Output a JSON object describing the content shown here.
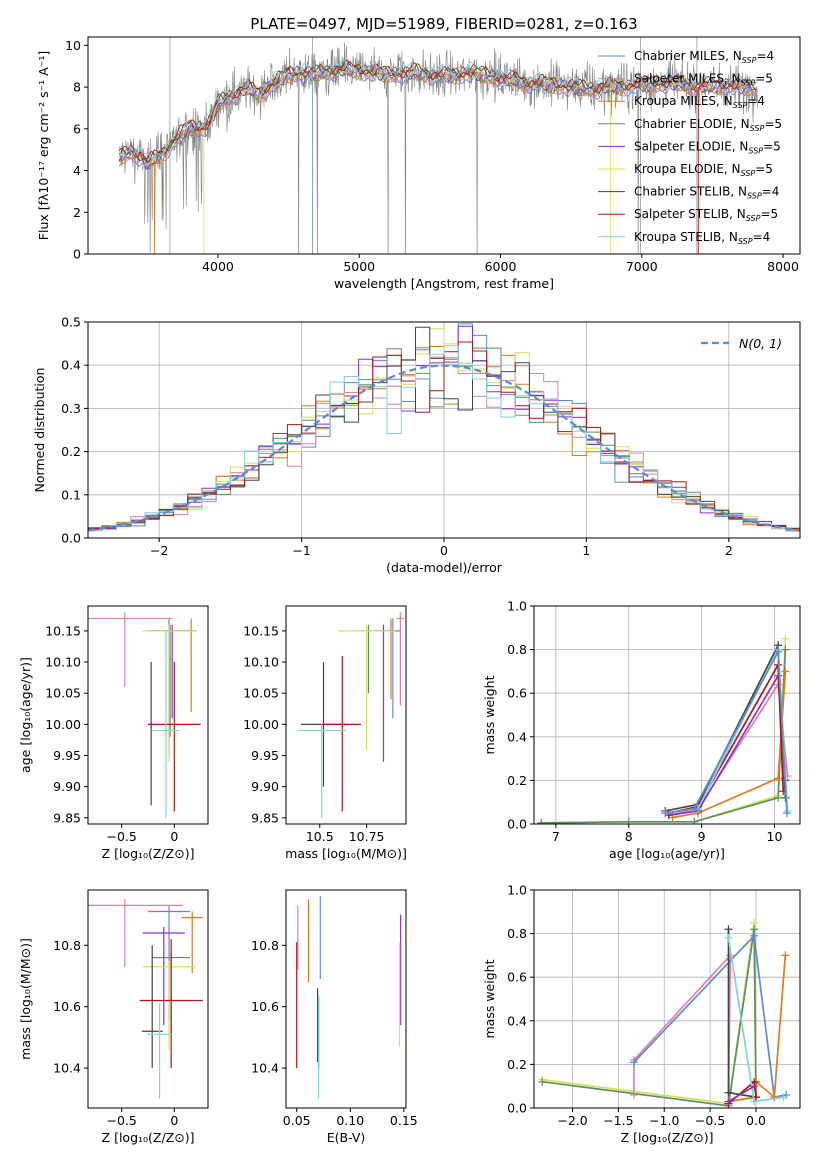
{
  "figure": {
    "title": "PLATE=0497, MJD=51989, FIBERID=0281, z=0.163"
  },
  "palette": {
    "chabrier_miles": "#5b8bd6",
    "salpeter_miles": "#e67fa8",
    "kroupa_miles": "#e07a1f",
    "chabrier_elodie": "#5f8f5f",
    "salpeter_elodie": "#8b2fc9",
    "kroupa_elodie": "#d4e05a",
    "chabrier_stelib": "#444444",
    "salpeter_stelib": "#b01515",
    "kroupa_stelib": "#7fd4d8",
    "data": "#808080",
    "normal": "#5b8bd6"
  },
  "chart_data": [
    {
      "id": "spectrum",
      "type": "line",
      "xlabel": "wavelength [Angstrom, rest frame]",
      "ylabel": "Flux [fλ10⁻¹⁷ erg cm⁻² s⁻¹ A⁻¹]",
      "xlim": [
        3080,
        8120
      ],
      "ylim": [
        0,
        10.4
      ],
      "xticks": [
        4000,
        5000,
        6000,
        7000,
        8000
      ],
      "yticks": [
        0,
        2,
        4,
        6,
        8,
        10
      ],
      "legend_position": "right",
      "continuum": [
        [
          3300,
          4.6
        ],
        [
          3380,
          4.9
        ],
        [
          3450,
          4.7
        ],
        [
          3500,
          4.3
        ],
        [
          3600,
          4.8
        ],
        [
          3700,
          5.5
        ],
        [
          3800,
          6.1
        ],
        [
          3900,
          6.0
        ],
        [
          3950,
          6.4
        ],
        [
          4000,
          7.2
        ],
        [
          4100,
          7.6
        ],
        [
          4200,
          7.9
        ],
        [
          4300,
          7.7
        ],
        [
          4400,
          8.2
        ],
        [
          4500,
          8.6
        ],
        [
          4600,
          8.7
        ],
        [
          4700,
          8.6
        ],
        [
          4800,
          8.8
        ],
        [
          5000,
          8.8
        ],
        [
          5200,
          8.6
        ],
        [
          5400,
          8.7
        ],
        [
          5600,
          8.5
        ],
        [
          5800,
          8.7
        ],
        [
          6000,
          8.4
        ],
        [
          6200,
          8.2
        ],
        [
          6400,
          8.1
        ],
        [
          6600,
          7.9
        ],
        [
          6800,
          8.0
        ],
        [
          7000,
          8.1
        ],
        [
          7200,
          8.2
        ],
        [
          7400,
          8.0
        ],
        [
          7600,
          8.1
        ],
        [
          7820,
          7.9
        ]
      ],
      "series": [
        {
          "name": "Chabrier MILES, N_SSP=4",
          "color_key": "chabrier_miles"
        },
        {
          "name": "Salpeter MILES, N_SSP=5",
          "color_key": "salpeter_miles"
        },
        {
          "name": "Kroupa MILES, N_SSP=4",
          "color_key": "kroupa_miles"
        },
        {
          "name": "Chabrier ELODIE, N_SSP=5",
          "color_key": "chabrier_elodie"
        },
        {
          "name": "Salpeter ELODIE, N_SSP=5",
          "color_key": "salpeter_elodie"
        },
        {
          "name": "Kroupa ELODIE, N_SSP=5",
          "color_key": "kroupa_elodie"
        },
        {
          "name": "Chabrier STELIB, N_SSP=4",
          "color_key": "chabrier_stelib"
        },
        {
          "name": "Salpeter STELIB, N_SSP=5",
          "color_key": "salpeter_stelib"
        },
        {
          "name": "Kroupa STELIB, N_SSP=4",
          "color_key": "kroupa_stelib"
        }
      ]
    },
    {
      "id": "residuals",
      "type": "line",
      "xlabel": "(data-model)/error",
      "ylabel": "Normed distribution",
      "xlim": [
        -2.5,
        2.5
      ],
      "ylim": [
        0,
        0.5
      ],
      "xticks": [
        -2,
        -1,
        0,
        1,
        2
      ],
      "yticks": [
        0.0,
        0.1,
        0.2,
        0.3,
        0.4,
        0.5
      ],
      "grid": true,
      "legend_label": "N(0, 1)",
      "legend_position": "top-right",
      "bin_width": 0.1
    },
    {
      "id": "age_vs_z",
      "type": "scatter",
      "xlabel": "Z [log₁₀(Z/Z⊙)]",
      "ylabel": "age [log₁₀(age/yr)]",
      "xlim": [
        -0.82,
        0.32
      ],
      "ylim": [
        9.84,
        10.19
      ],
      "xticks": [
        -0.5,
        0.0
      ],
      "yticks": [
        9.85,
        9.9,
        9.95,
        10.0,
        10.05,
        10.1,
        10.15
      ],
      "points": [
        {
          "color_key": "chabrier_miles",
          "x": -0.05,
          "xe": 0.15,
          "y": 10.15,
          "ye_lo": 0.2,
          "ye_hi": 0.02
        },
        {
          "color_key": "salpeter_miles",
          "x": -0.47,
          "xe": 0.45,
          "y": 10.17,
          "ye_lo": 0.11,
          "ye_hi": 0.01
        },
        {
          "color_key": "kroupa_miles",
          "x": 0.16,
          "xe": 0.05,
          "y": 10.15,
          "ye_lo": 0.13,
          "ye_hi": 0.02
        },
        {
          "color_key": "chabrier_elodie",
          "x": -0.04,
          "xe": 0.2,
          "y": 10.15,
          "ye_lo": 0.17,
          "ye_hi": 0.01
        },
        {
          "color_key": "salpeter_elodie",
          "x": -0.02,
          "xe": 0.2,
          "y": 10.15,
          "ye_lo": 0.14,
          "ye_hi": 0.01
        },
        {
          "color_key": "kroupa_elodie",
          "x": -0.05,
          "xe": 0.25,
          "y": 10.15,
          "ye_lo": 0.21,
          "ye_hi": 0.01
        },
        {
          "color_key": "chabrier_stelib",
          "x": -0.22,
          "xe": 0.02,
          "y": 10.0,
          "ye_lo": 0.13,
          "ye_hi": 0.1
        },
        {
          "color_key": "salpeter_stelib",
          "x": 0.0,
          "xe": 0.25,
          "y": 10.0,
          "ye_lo": 0.14,
          "ye_hi": 0.1
        },
        {
          "color_key": "kroupa_stelib",
          "x": -0.08,
          "xe": 0.13,
          "y": 9.99,
          "ye_lo": 0.14,
          "ye_hi": 0.16
        }
      ]
    },
    {
      "id": "age_vs_mass",
      "type": "scatter",
      "xlabel": "mass [log₁₀(M/M⊙)]",
      "ylabel": "",
      "xlim": [
        10.32,
        10.96
      ],
      "ylim": [
        9.84,
        10.19
      ],
      "xticks": [
        10.5,
        10.75
      ],
      "yticks": [
        9.85,
        9.9,
        9.95,
        10.0,
        10.05,
        10.1,
        10.15
      ],
      "points": [
        {
          "color_key": "chabrier_miles",
          "x": 10.89,
          "xe": 0.04,
          "y": 10.15,
          "ye_lo": 0.14,
          "ye_hi": 0.02
        },
        {
          "color_key": "salpeter_miles",
          "x": 10.93,
          "xe": 0.02,
          "y": 10.17,
          "ye_lo": 0.14,
          "ye_hi": 0.01
        },
        {
          "color_key": "kroupa_miles",
          "x": 10.88,
          "xe": 0.02,
          "y": 10.15,
          "ye_lo": 0.11,
          "ye_hi": 0.02
        },
        {
          "color_key": "chabrier_elodie",
          "x": 10.76,
          "xe": 0.08,
          "y": 10.15,
          "ye_lo": 0.1,
          "ye_hi": 0.01
        },
        {
          "color_key": "salpeter_elodie",
          "x": 10.84,
          "xe": 0.05,
          "y": 10.15,
          "ye_lo": 0.21,
          "ye_hi": 0.01
        },
        {
          "color_key": "kroupa_elodie",
          "x": 10.75,
          "xe": 0.15,
          "y": 10.15,
          "ye_lo": 0.19,
          "ye_hi": 0.01
        },
        {
          "color_key": "chabrier_stelib",
          "x": 10.52,
          "xe": 0.12,
          "y": 10.0,
          "ye_lo": 0.1,
          "ye_hi": 0.1
        },
        {
          "color_key": "salpeter_stelib",
          "x": 10.62,
          "xe": 0.1,
          "y": 10.0,
          "ye_lo": 0.14,
          "ye_hi": 0.11
        },
        {
          "color_key": "kroupa_stelib",
          "x": 10.51,
          "xe": 0.13,
          "y": 9.99,
          "ye_lo": 0.14,
          "ye_hi": 0.01
        }
      ]
    },
    {
      "id": "mass_vs_z",
      "type": "scatter",
      "xlabel": "Z [log₁₀(Z/Z⊙)]",
      "ylabel": "mass [log₁₀(M/M⊙)]",
      "xlim": [
        -0.82,
        0.32
      ],
      "ylim": [
        10.27,
        10.98
      ],
      "xticks": [
        -0.5,
        0.0
      ],
      "yticks": [
        10.4,
        10.6,
        10.8
      ],
      "points": [
        {
          "color_key": "chabrier_miles",
          "x": -0.05,
          "xe": 0.2,
          "y": 10.91,
          "ye_lo": 0.35,
          "ye_hi": 0.02
        },
        {
          "color_key": "salpeter_miles",
          "x": -0.47,
          "xe": 0.55,
          "y": 10.93,
          "ye_lo": 0.2,
          "ye_hi": 0.02
        },
        {
          "color_key": "kroupa_miles",
          "x": 0.17,
          "xe": 0.1,
          "y": 10.89,
          "ye_lo": 0.18,
          "ye_hi": 0.02
        },
        {
          "color_key": "chabrier_elodie",
          "x": -0.03,
          "xe": 0.18,
          "y": 10.76,
          "ye_lo": 0.25,
          "ye_hi": 0.02
        },
        {
          "color_key": "salpeter_elodie",
          "x": -0.1,
          "xe": 0.2,
          "y": 10.84,
          "ye_lo": 0.3,
          "ye_hi": 0.02
        },
        {
          "color_key": "kroupa_elodie",
          "x": -0.05,
          "xe": 0.25,
          "y": 10.73,
          "ye_lo": 0.27,
          "ye_hi": 0.02
        },
        {
          "color_key": "chabrier_stelib",
          "x": -0.21,
          "xe": 0.1,
          "y": 10.52,
          "ye_lo": 0.12,
          "ye_hi": 0.28
        },
        {
          "color_key": "salpeter_stelib",
          "x": -0.03,
          "xe": 0.3,
          "y": 10.62,
          "ye_lo": 0.22,
          "ye_hi": 0.2
        },
        {
          "color_key": "kroupa_stelib",
          "x": -0.14,
          "xe": 0.12,
          "y": 10.51,
          "ye_lo": 0.21,
          "ye_hi": 0.1
        }
      ]
    },
    {
      "id": "mass_vs_ebv",
      "type": "scatter",
      "xlabel": "E(B-V)",
      "ylabel": "",
      "xlim": [
        0.04,
        0.152
      ],
      "ylim": [
        10.27,
        10.98
      ],
      "xticks": [
        0.05,
        0.1,
        0.15
      ],
      "yticks": [
        10.4,
        10.6,
        10.8
      ],
      "vlines": [
        {
          "color_key": "chabrier_miles",
          "x": 0.072,
          "y_lo": 10.69,
          "y_hi": 10.96
        },
        {
          "color_key": "salpeter_miles",
          "x": 0.051,
          "y_lo": 10.72,
          "y_hi": 10.93
        },
        {
          "color_key": "kroupa_miles",
          "x": 0.061,
          "y_lo": 10.68,
          "y_hi": 10.95
        },
        {
          "color_key": "chabrier_elodie",
          "x": 0.0705,
          "y_lo": 10.4,
          "y_hi": 10.63
        },
        {
          "color_key": "salpeter_elodie",
          "x": 0.147,
          "y_lo": 10.54,
          "y_hi": 10.9
        },
        {
          "color_key": "kroupa_elodie",
          "x": 0.146,
          "y_lo": 10.47,
          "y_hi": 10.81
        },
        {
          "color_key": "chabrier_stelib",
          "x": 0.0695,
          "y_lo": 10.42,
          "y_hi": 10.66
        },
        {
          "color_key": "salpeter_stelib",
          "x": 0.05,
          "y_lo": 10.4,
          "y_hi": 10.81
        },
        {
          "color_key": "kroupa_stelib",
          "x": 0.0705,
          "y_lo": 10.3,
          "y_hi": 10.64
        }
      ]
    },
    {
      "id": "weight_vs_age",
      "type": "line",
      "xlabel": "age [log₁₀(age/yr)]",
      "ylabel": "mass weight",
      "xlim": [
        6.7,
        10.35
      ],
      "ylim": [
        0,
        1.0
      ],
      "xticks": [
        7,
        8,
        9,
        10
      ],
      "yticks": [
        0.0,
        0.2,
        0.4,
        0.6,
        0.8,
        1.0
      ],
      "grid": true,
      "series": [
        {
          "color_key": "kroupa_elodie",
          "x": [
            6.8,
            8.0,
            8.9,
            10.05,
            10.15
          ],
          "y": [
            0.005,
            0.01,
            0.01,
            0.13,
            0.85
          ]
        },
        {
          "color_key": "chabrier_elodie",
          "x": [
            6.8,
            8.0,
            8.9,
            10.05,
            10.15
          ],
          "y": [
            0.005,
            0.01,
            0.01,
            0.12,
            0.8
          ]
        },
        {
          "color_key": "kroupa_miles",
          "x": [
            8.6,
            8.95,
            10.05,
            10.15
          ],
          "y": [
            0.03,
            0.05,
            0.21,
            0.7
          ]
        },
        {
          "color_key": "salpeter_miles",
          "x": [
            8.55,
            8.95,
            10.05,
            10.18
          ],
          "y": [
            0.04,
            0.07,
            0.64,
            0.22
          ]
        },
        {
          "color_key": "salpeter_elodie",
          "x": [
            8.55,
            8.95,
            10.05,
            10.15
          ],
          "y": [
            0.04,
            0.06,
            0.68,
            0.2
          ]
        },
        {
          "color_key": "chabrier_stelib",
          "x": [
            8.5,
            8.95,
            10.05,
            10.15
          ],
          "y": [
            0.06,
            0.09,
            0.82,
            0.12
          ]
        },
        {
          "color_key": "salpeter_stelib",
          "x": [
            8.55,
            8.95,
            10.05,
            10.12
          ],
          "y": [
            0.05,
            0.08,
            0.73,
            0.15
          ]
        },
        {
          "color_key": "kroupa_stelib",
          "x": [
            8.5,
            8.95,
            10.05,
            10.18
          ],
          "y": [
            0.05,
            0.07,
            0.8,
            0.06
          ]
        },
        {
          "color_key": "chabrier_miles",
          "x": [
            8.5,
            8.9,
            10.05,
            10.17
          ],
          "y": [
            0.05,
            0.07,
            0.79,
            0.05
          ]
        }
      ]
    },
    {
      "id": "weight_vs_z",
      "type": "line",
      "xlabel": "Z [log₁₀(Z/Z⊙)]",
      "ylabel": "mass weight",
      "xlim": [
        -2.42,
        0.48
      ],
      "ylim": [
        0,
        1.0
      ],
      "xticks": [
        -2.0,
        -1.5,
        -1.0,
        -0.5,
        0.0
      ],
      "yticks": [
        0.0,
        0.2,
        0.4,
        0.6,
        0.8,
        1.0
      ],
      "grid": true,
      "series": [
        {
          "color_key": "kroupa_elodie",
          "x": [
            -2.33,
            -0.3,
            -0.02,
            0.0
          ],
          "y": [
            0.13,
            0.02,
            0.85,
            0.05
          ]
        },
        {
          "color_key": "chabrier_elodie",
          "x": [
            -2.33,
            -0.3,
            -0.02,
            0.0
          ],
          "y": [
            0.12,
            0.01,
            0.82,
            0.05
          ]
        },
        {
          "color_key": "salpeter_miles",
          "x": [
            -1.33,
            -1.33,
            -0.28,
            -0.3
          ],
          "y": [
            0.06,
            0.22,
            0.7,
            0.02
          ]
        },
        {
          "color_key": "chabrier_miles",
          "x": [
            -1.33,
            -0.02,
            0.2,
            0.33
          ],
          "y": [
            0.21,
            0.79,
            0.05,
            0.06
          ]
        },
        {
          "color_key": "kroupa_miles",
          "x": [
            -0.3,
            0.0,
            0.0,
            0.2,
            0.32
          ],
          "y": [
            0.03,
            0.05,
            0.12,
            0.05,
            0.7
          ]
        },
        {
          "color_key": "chabrier_stelib",
          "x": [
            -0.3,
            -0.3,
            0.0
          ],
          "y": [
            0.82,
            0.07,
            0.05
          ]
        },
        {
          "color_key": "salpeter_stelib",
          "x": [
            -0.3,
            -0.02,
            0.0
          ],
          "y": [
            0.02,
            0.12,
            0.05
          ]
        },
        {
          "color_key": "kroupa_stelib",
          "x": [
            -0.3,
            -0.02,
            0.3
          ],
          "y": [
            0.78,
            0.03,
            0.05
          ]
        },
        {
          "color_key": "salpeter_elodie",
          "x": [
            -0.3,
            -0.02
          ],
          "y": [
            0.03,
            0.1
          ]
        }
      ]
    }
  ]
}
